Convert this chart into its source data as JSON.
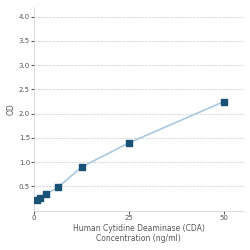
{
  "x_data": [
    0.781,
    1.563,
    3.125,
    6.25,
    12.5,
    25,
    50
  ],
  "y_data": [
    0.221,
    0.265,
    0.346,
    0.481,
    0.9,
    1.4,
    2.25
  ],
  "xlabel_line1": "Human Cytidine Deaminase (CDA)",
  "xlabel_line2": "Concentration (ng/ml)",
  "ylabel": "OD",
  "xlim": [
    0,
    55
  ],
  "ylim": [
    0,
    4.2
  ],
  "yticks": [
    0.5,
    1.0,
    1.5,
    2.0,
    2.5,
    3.0,
    3.5,
    4.0
  ],
  "xticks": [
    0,
    25,
    50
  ],
  "line_color": "#aac8e0",
  "marker_color": "#1a5276",
  "marker_size": 4,
  "line_width": 1.2,
  "bg_color": "#ffffff",
  "grid_color": "#cccccc",
  "label_fontsize": 5.5,
  "tick_fontsize": 5
}
